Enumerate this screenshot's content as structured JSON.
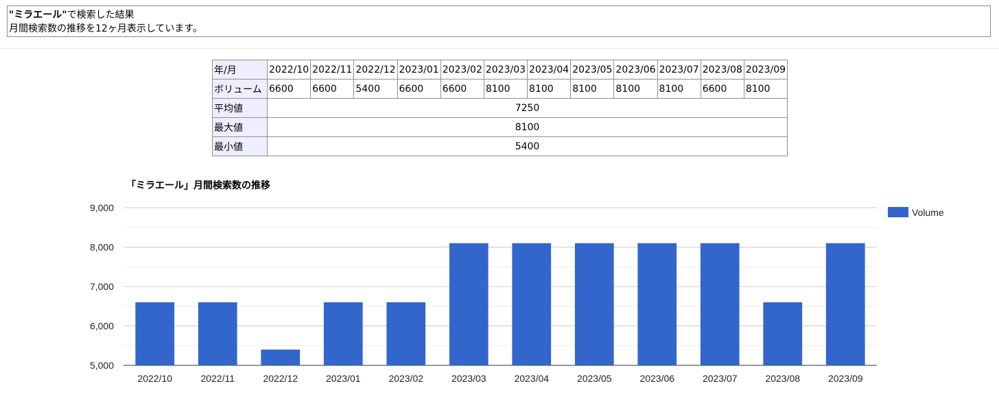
{
  "header": {
    "quoted_keyword": "\"ミラエール\"",
    "line1_suffix": "で検索した結果",
    "line2": "月間検索数の推移を12ヶ月表示しています。"
  },
  "table": {
    "month_label": "年/月",
    "volume_label": "ボリューム",
    "months": [
      "2022/10",
      "2022/11",
      "2022/12",
      "2023/01",
      "2023/02",
      "2023/03",
      "2023/04",
      "2023/05",
      "2023/06",
      "2023/07",
      "2023/08",
      "2023/09"
    ],
    "volumes": [
      "6600",
      "6600",
      "5400",
      "6600",
      "6600",
      "8100",
      "8100",
      "8100",
      "8100",
      "8100",
      "6600",
      "8100"
    ],
    "avg_label": "平均値",
    "avg_value": "7250",
    "max_label": "最大値",
    "max_value": "8100",
    "min_label": "最小値",
    "min_value": "5400"
  },
  "chart_data": {
    "type": "bar",
    "title": "「ミラエール」月間検索数の推移",
    "categories": [
      "2022/10",
      "2022/11",
      "2022/12",
      "2023/01",
      "2023/02",
      "2023/03",
      "2023/04",
      "2023/05",
      "2023/06",
      "2023/07",
      "2023/08",
      "2023/09"
    ],
    "series": [
      {
        "name": "Volume",
        "values": [
          6600,
          6600,
          5400,
          6600,
          6600,
          8100,
          8100,
          8100,
          8100,
          8100,
          6600,
          8100
        ],
        "color": "#3366cc"
      }
    ],
    "ylim": [
      5000,
      9000
    ],
    "yticks": [
      5000,
      6000,
      7000,
      8000,
      9000
    ],
    "ytick_labels": [
      "5,000",
      "6,000",
      "7,000",
      "8,000",
      "9,000"
    ],
    "grid": true,
    "legend_position": "right"
  }
}
